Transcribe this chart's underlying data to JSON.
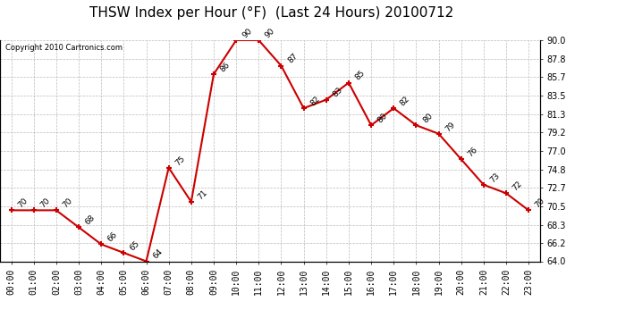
{
  "title": "THSW Index per Hour (°F)  (Last 24 Hours) 20100712",
  "copyright": "Copyright 2010 Cartronics.com",
  "hours": [
    "00:00",
    "01:00",
    "02:00",
    "03:00",
    "04:00",
    "05:00",
    "06:00",
    "07:00",
    "08:00",
    "09:00",
    "10:00",
    "11:00",
    "12:00",
    "13:00",
    "14:00",
    "15:00",
    "16:00",
    "17:00",
    "18:00",
    "19:00",
    "20:00",
    "21:00",
    "22:00",
    "23:00"
  ],
  "values": [
    70,
    70,
    70,
    68,
    66,
    65,
    64,
    75,
    71,
    86,
    90,
    90,
    87,
    82,
    83,
    85,
    80,
    82,
    80,
    79,
    76,
    73,
    72,
    70
  ],
  "ylim": [
    64.0,
    90.0
  ],
  "yticks": [
    64.0,
    66.2,
    68.3,
    70.5,
    72.7,
    74.8,
    77.0,
    79.2,
    81.3,
    83.5,
    85.7,
    87.8,
    90.0
  ],
  "line_color": "#cc0000",
  "marker_color": "#cc0000",
  "bg_color": "#ffffff",
  "grid_color": "#bbbbbb",
  "title_fontsize": 11,
  "label_fontsize": 6.5,
  "copyright_fontsize": 6,
  "tick_fontsize": 7
}
